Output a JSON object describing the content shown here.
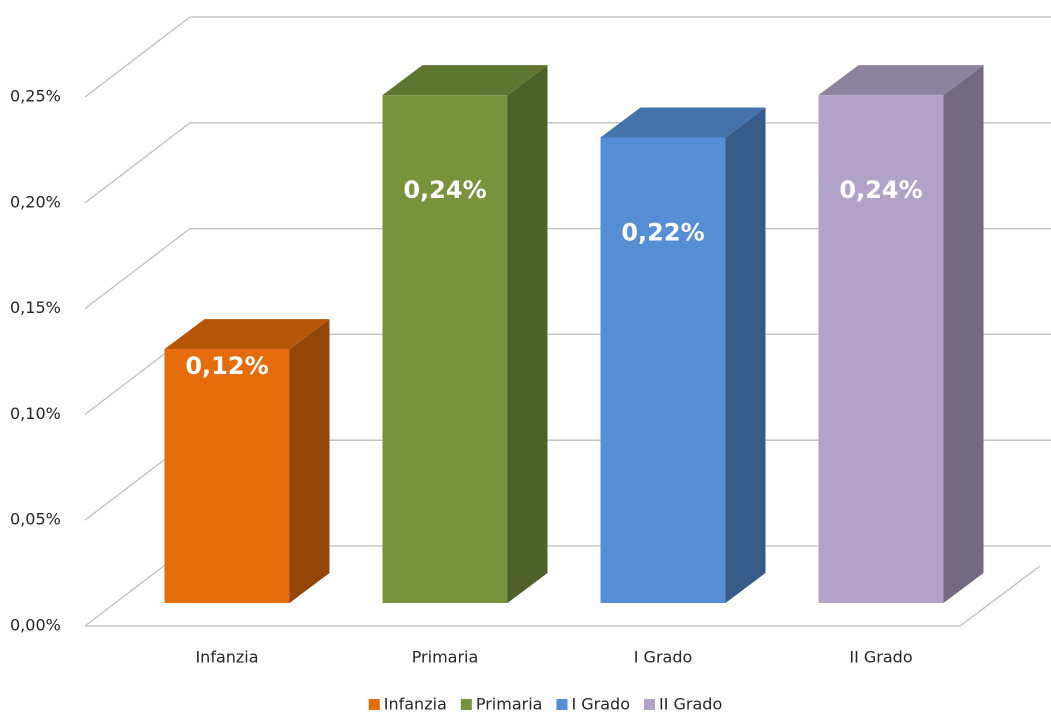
{
  "chart_data": {
    "type": "bar3d",
    "categories": [
      "Infanzia",
      "Primaria",
      "I Grado",
      "II Grado"
    ],
    "series": [
      {
        "name": "Infanzia",
        "color": "#e46c0a",
        "values": [
          0.12,
          null,
          null,
          null
        ],
        "value_labels": [
          "0,12%",
          null,
          null,
          null
        ]
      },
      {
        "name": "Primaria",
        "color": "#77933c",
        "values": [
          null,
          0.24,
          null,
          null
        ],
        "value_labels": [
          null,
          "0,24%",
          null,
          null
        ]
      },
      {
        "name": "I Grado",
        "color": "#558ed5",
        "values": [
          null,
          null,
          0.22,
          null
        ],
        "value_labels": [
          null,
          null,
          "0,22%",
          null
        ]
      },
      {
        "name": "II Grado",
        "color": "#b3a2c7",
        "values": [
          null,
          null,
          null,
          0.24
        ],
        "value_labels": [
          null,
          null,
          null,
          "0,24%"
        ]
      }
    ],
    "ylim": [
      0,
      0.25
    ],
    "yticks": [
      {
        "value": 0,
        "label": "0,00%"
      },
      {
        "value": 0.05,
        "label": "0,05%"
      },
      {
        "value": 0.1,
        "label": "0,10%"
      },
      {
        "value": 0.15,
        "label": "0,15%"
      },
      {
        "value": 0.2,
        "label": "0,20%"
      },
      {
        "value": 0.25,
        "label": "0,25%"
      }
    ],
    "grid": true,
    "legend": "bottom"
  }
}
